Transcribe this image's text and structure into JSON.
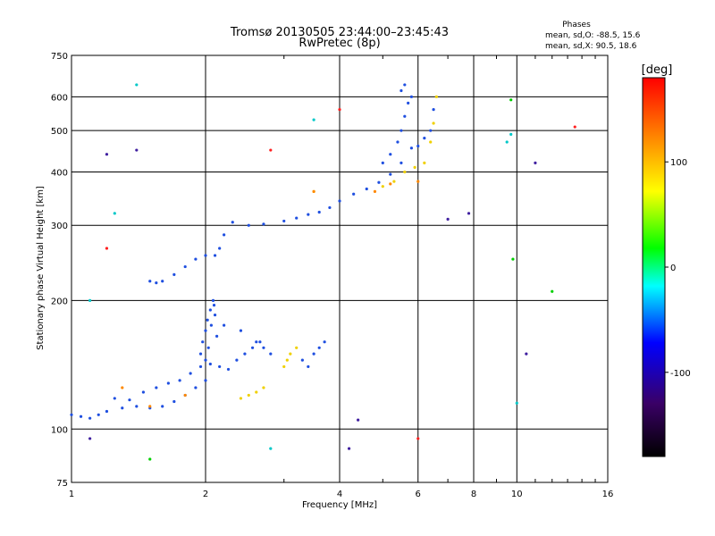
{
  "chart_data": {
    "type": "scatter",
    "title": "Tromsø 20130505 23:44:00–23:45:43",
    "subtitle": "RwPretec (8p)",
    "xlabel": "Frequency [MHz]",
    "ylabel": "Stationary phase Virtual Height [km]",
    "x_scale": "log",
    "y_scale": "log",
    "xlim": [
      1,
      16
    ],
    "ylim": [
      75,
      750
    ],
    "x_ticks": [
      1,
      2,
      4,
      6,
      8,
      10,
      16
    ],
    "y_ticks": [
      75,
      100,
      200,
      300,
      400,
      500,
      600,
      750
    ],
    "grid": true,
    "legend_title": "Phases",
    "legend_lines": [
      "mean, sd,O: -88.5, 15.6",
      "mean, sd,X:  90.5, 18.6"
    ],
    "colorbar": {
      "label": "[deg]",
      "range": [
        -180,
        180
      ],
      "ticks": [
        100,
        0,
        -100
      ],
      "stops": [
        "#000000",
        "#3a0066",
        "#0000ff",
        "#00ffff",
        "#00ff00",
        "#ffff00",
        "#ff8000",
        "#ff0000"
      ]
    },
    "series": [
      {
        "color": "#1f4fe0",
        "x": [
          1.0,
          1.05,
          1.1,
          1.15,
          1.2,
          1.3,
          1.4,
          1.5,
          1.6,
          1.7,
          1.8,
          1.9,
          2.0,
          1.25,
          1.35,
          1.45,
          1.55,
          1.65,
          1.75,
          1.85,
          1.95,
          2.05,
          2.15,
          2.25,
          2.35,
          2.45,
          2.55,
          2.65,
          1.95,
          1.97,
          2.0,
          2.02,
          2.05,
          2.08,
          2.1,
          2.12,
          2.0,
          2.03,
          2.06,
          2.09,
          2.2,
          2.4,
          2.6,
          2.7,
          2.8,
          3.3,
          3.4,
          3.5,
          3.6,
          3.7
        ],
        "y": [
          108,
          107,
          106,
          108,
          110,
          112,
          113,
          112,
          113,
          116,
          120,
          125,
          130,
          118,
          117,
          122,
          125,
          128,
          130,
          135,
          140,
          142,
          140,
          138,
          145,
          150,
          155,
          160,
          150,
          160,
          170,
          180,
          190,
          200,
          185,
          165,
          145,
          155,
          175,
          195,
          175,
          170,
          160,
          155,
          150,
          145,
          140,
          150,
          155,
          160
        ]
      },
      {
        "color": "#1f4fe0",
        "x": [
          1.5,
          1.55,
          1.6,
          1.7,
          1.8,
          1.9,
          2.0,
          2.1,
          2.15,
          2.2,
          2.3,
          2.5,
          2.7,
          3.0,
          3.2,
          3.4,
          3.6,
          3.8,
          4.0,
          4.3,
          4.6,
          4.9,
          5.2,
          5.5,
          5.8
        ],
        "y": [
          222,
          220,
          222,
          230,
          240,
          250,
          255,
          255,
          265,
          285,
          305,
          300,
          302,
          307,
          312,
          318,
          322,
          330,
          342,
          355,
          365,
          378,
          395,
          420,
          455
        ]
      },
      {
        "color": "#1f4fe0",
        "x": [
          5.0,
          5.2,
          5.4,
          5.5,
          5.6,
          5.7,
          5.8,
          6.0,
          6.2,
          6.4,
          6.5,
          5.5,
          5.6
        ],
        "y": [
          420,
          440,
          470,
          500,
          540,
          580,
          600,
          460,
          480,
          500,
          560,
          620,
          640
        ]
      },
      {
        "color": "#f0d000",
        "x": [
          2.4,
          2.5,
          2.6,
          2.7,
          3.0,
          3.05,
          3.1,
          3.2,
          3.5,
          5.0,
          5.3,
          5.6,
          5.9,
          6.2,
          6.4,
          6.5,
          6.6
        ],
        "y": [
          118,
          120,
          122,
          125,
          140,
          145,
          150,
          155,
          360,
          370,
          380,
          400,
          410,
          420,
          470,
          520,
          600
        ]
      },
      {
        "color": "#ff8800",
        "x": [
          1.3,
          1.5,
          1.8,
          3.5,
          4.8,
          5.2,
          6.0
        ],
        "y": [
          125,
          113,
          120,
          360,
          360,
          375,
          380
        ]
      },
      {
        "color": "#00c8c8",
        "x": [
          1.1,
          1.25,
          1.4,
          2.8,
          3.5,
          9.5,
          9.7,
          10.0
        ],
        "y": [
          200,
          320,
          640,
          90,
          530,
          470,
          490,
          115
        ]
      },
      {
        "color": "#ff2020",
        "x": [
          1.2,
          2.8,
          4.0,
          6.0,
          13.5
        ],
        "y": [
          265,
          450,
          560,
          95,
          510
        ]
      },
      {
        "color": "#00d000",
        "x": [
          1.5,
          9.7,
          9.8,
          12.0
        ],
        "y": [
          85,
          590,
          250,
          210
        ]
      },
      {
        "color": "#4020a0",
        "x": [
          1.1,
          1.2,
          1.4,
          4.2,
          4.4,
          7.0,
          7.8,
          10.5,
          11.0
        ],
        "y": [
          95,
          440,
          450,
          90,
          105,
          310,
          320,
          150,
          420
        ]
      }
    ]
  }
}
